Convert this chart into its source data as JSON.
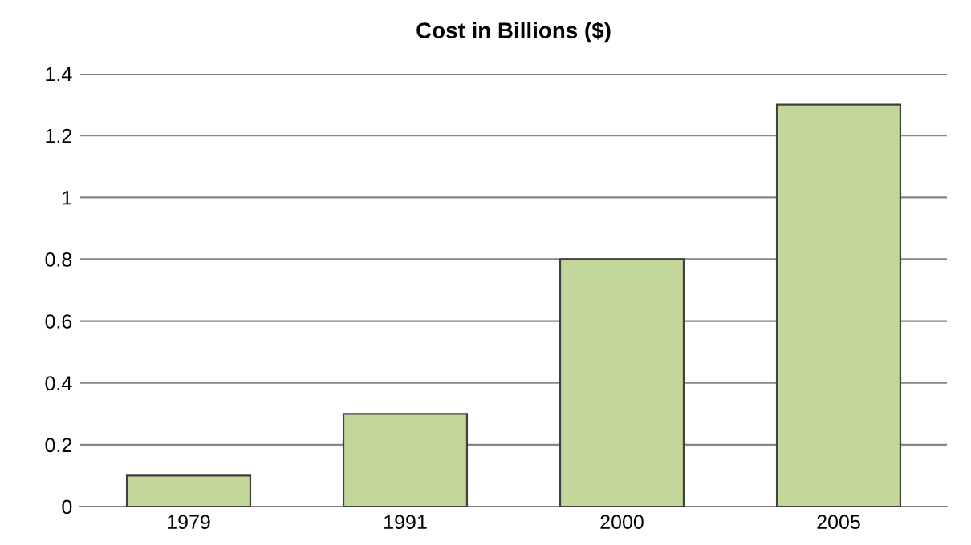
{
  "chart_data": {
    "type": "bar",
    "title": "Cost in Billions ($)",
    "categories": [
      "1979",
      "1991",
      "2000",
      "2005"
    ],
    "values": [
      0.1,
      0.3,
      0.8,
      1.3
    ],
    "color": "#c4d79b",
    "ylim": [
      0,
      1.4
    ],
    "yticks": [
      0,
      0.2,
      0.4,
      0.6,
      0.8,
      1,
      1.2,
      1.4
    ],
    "grid": "y"
  }
}
